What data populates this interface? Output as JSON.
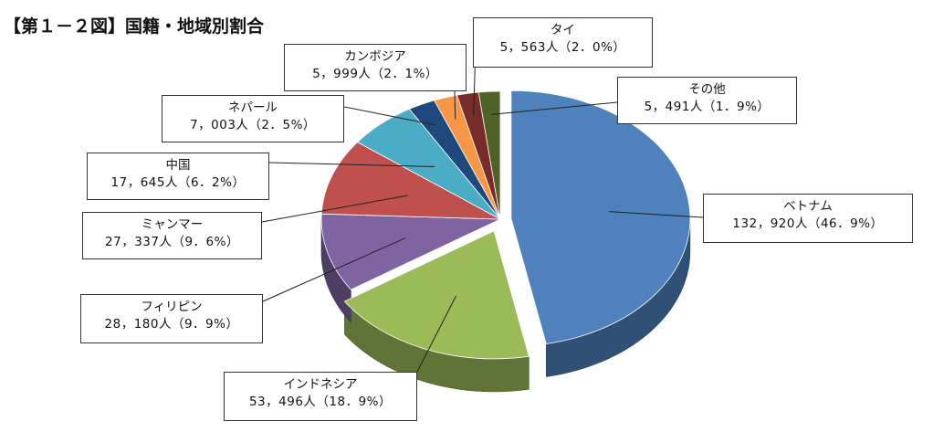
{
  "title": "【第１－２図】国籍・地域別割合",
  "chart_data": {
    "type": "pie",
    "title": "【第１－２図】国籍・地域別割合",
    "unit": "人",
    "categories": [
      "ベトナム",
      "インドネシア",
      "フィリピン",
      "ミャンマー",
      "中国",
      "ネパール",
      "カンボジア",
      "タイ",
      "その他"
    ],
    "values": [
      132920,
      53496,
      28180,
      27337,
      17645,
      7003,
      5999,
      5563,
      5491
    ],
    "percentages": [
      46.9,
      18.9,
      9.9,
      9.6,
      6.2,
      2.5,
      2.1,
      2.0,
      1.9
    ],
    "colors": [
      "#4F81BD",
      "#9BBB59",
      "#8064A2",
      "#C0504D",
      "#4BACC6",
      "#1F497D",
      "#F79646",
      "#772C2A",
      "#4F6228"
    ],
    "legend": "none",
    "exploded": [
      "ベトナム",
      "インドネシア"
    ]
  },
  "labels": [
    {
      "name": "ベトナム",
      "value": "132，920人（46．9%）"
    },
    {
      "name": "インドネシア",
      "value": "53，496人（18．9%）"
    },
    {
      "name": "フィリピン",
      "value": "28，180人（9．9%）"
    },
    {
      "name": "ミャンマー",
      "value": "27，337人（9．6%）"
    },
    {
      "name": "中国",
      "value": "17，645人（6．2%）"
    },
    {
      "name": "ネパール",
      "value": "7，003人（2．5%）"
    },
    {
      "name": "カンボジア",
      "value": "5，999人（2．1%）"
    },
    {
      "name": "タイ",
      "value": "5，563人（2．0%）"
    },
    {
      "name": "その他",
      "value": "5，491人（1．9%）"
    }
  ]
}
